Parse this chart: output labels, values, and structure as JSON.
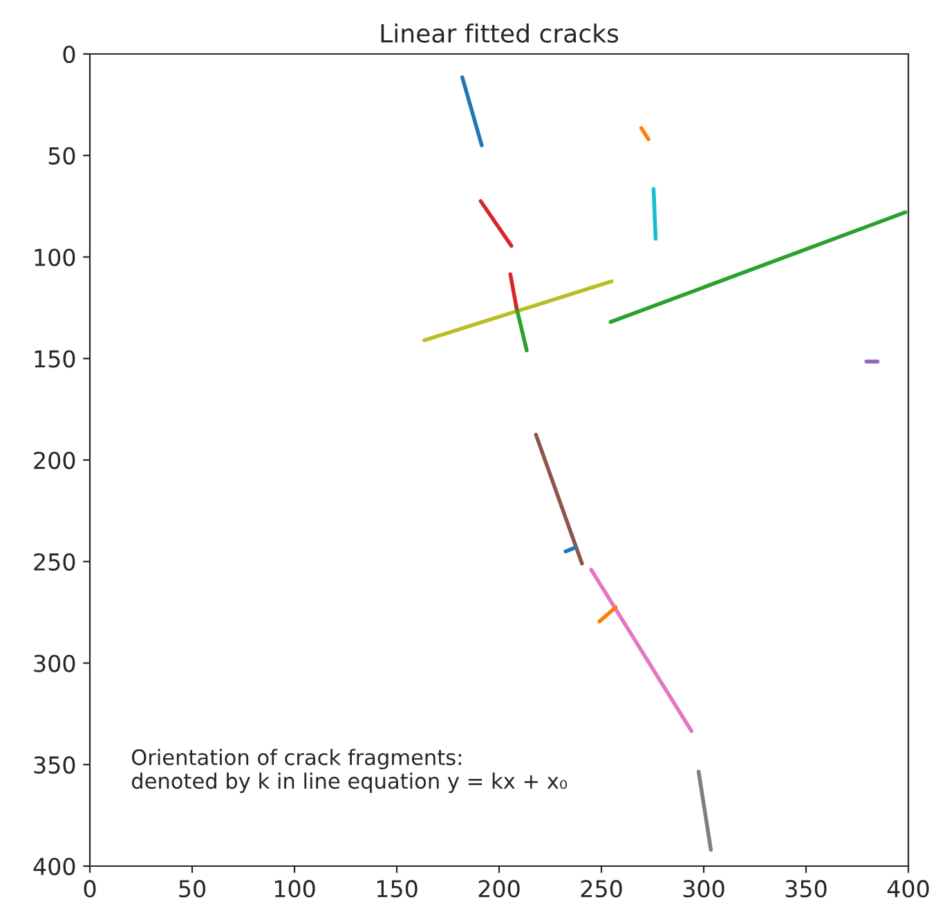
{
  "chart_data": {
    "type": "line",
    "title": "Linear fitted cracks",
    "xlim": [
      0,
      400
    ],
    "ylim": [
      400,
      0
    ],
    "xticks": [
      0,
      50,
      100,
      150,
      200,
      250,
      300,
      350,
      400
    ],
    "yticks": [
      0,
      50,
      100,
      150,
      200,
      250,
      300,
      350,
      400
    ],
    "grid": false,
    "marker": "none",
    "line_style": "solid",
    "annotations": [
      "Orientation of crack fragments:\ndenoted by k in line equation y = kx + x₀"
    ],
    "series": [
      {
        "color": "#1f77b4",
        "x": [
          182,
          191.5
        ],
        "values": [
          11.5,
          45
        ]
      },
      {
        "color": "#ff7f0e",
        "x": [
          269.5,
          273
        ],
        "values": [
          36.5,
          42
        ]
      },
      {
        "color": "#2ca02c",
        "x": [
          254.5,
          398.5
        ],
        "values": [
          132,
          78
        ]
      },
      {
        "color": "#d62728",
        "x": [
          191,
          206
        ],
        "values": [
          72.5,
          94.5
        ]
      },
      {
        "color": "#9467bd",
        "x": [
          379.5,
          385
        ],
        "values": [
          151.5,
          151.5
        ]
      },
      {
        "color": "#8c564b",
        "x": [
          218,
          240.5
        ],
        "values": [
          187.5,
          251
        ]
      },
      {
        "color": "#e377c2",
        "x": [
          245,
          294
        ],
        "values": [
          254,
          333.5
        ]
      },
      {
        "color": "#7f7f7f",
        "x": [
          297.5,
          303.5
        ],
        "values": [
          353.5,
          392
        ]
      },
      {
        "color": "#bcbd22",
        "x": [
          163.5,
          255
        ],
        "values": [
          141,
          112
        ]
      },
      {
        "color": "#17becf",
        "x": [
          275.5,
          276.5
        ],
        "values": [
          66.5,
          91
        ]
      },
      {
        "color": "#1f77b4",
        "x": [
          232.5,
          237.5
        ],
        "values": [
          245,
          243
        ]
      },
      {
        "color": "#ff7f0e",
        "x": [
          249,
          257
        ],
        "values": [
          279.5,
          272.5
        ]
      },
      {
        "color": "#2ca02c",
        "x": [
          208.5,
          213.5
        ],
        "values": [
          125,
          146
        ]
      },
      {
        "color": "#d62728",
        "x": [
          205.5,
          208.5
        ],
        "values": [
          108.5,
          125
        ]
      }
    ]
  }
}
